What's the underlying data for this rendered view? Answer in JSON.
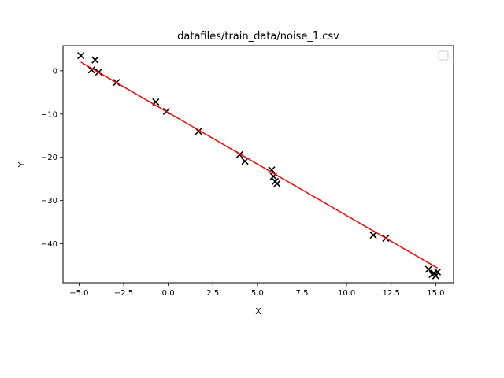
{
  "chart_data": {
    "type": "scatter",
    "title": "datafiles/train_data/noise_1.csv",
    "xlabel": "X",
    "ylabel": "Y",
    "xlim": [
      -5.9,
      16.0
    ],
    "ylim": [
      -49.0,
      5.8
    ],
    "xticks": [
      -5.0,
      -2.5,
      0.0,
      2.5,
      5.0,
      7.5,
      10.0,
      12.5,
      15.0
    ],
    "xtick_labels": [
      "−5.0",
      "−2.5",
      "0.0",
      "2.5",
      "5.0",
      "7.5",
      "10.0",
      "12.5",
      "15.0"
    ],
    "yticks": [
      0,
      -10,
      -20,
      -30,
      -40
    ],
    "ytick_labels": [
      "0",
      "−10",
      "−20",
      "−30",
      "−40"
    ],
    "grid": false,
    "legend": {
      "placement": "upper-right",
      "entries": []
    },
    "series": [
      {
        "kind": "scatter",
        "marker": "x",
        "color": "#000000",
        "points": [
          [
            -4.9,
            3.5
          ],
          [
            -4.3,
            0.2
          ],
          [
            -4.1,
            2.5
          ],
          [
            -3.9,
            -0.3
          ],
          [
            -2.9,
            -2.7
          ],
          [
            -0.7,
            -7.2
          ],
          [
            -0.1,
            -9.4
          ],
          [
            1.7,
            -14.0
          ],
          [
            4.0,
            -19.4
          ],
          [
            4.3,
            -20.9
          ],
          [
            5.8,
            -22.9
          ],
          [
            5.9,
            -24.4
          ],
          [
            6.0,
            -25.6
          ],
          [
            6.1,
            -26.1
          ],
          [
            11.5,
            -38.0
          ],
          [
            12.2,
            -38.7
          ],
          [
            14.6,
            -45.9
          ],
          [
            14.8,
            -47.1
          ],
          [
            14.9,
            -46.8
          ],
          [
            15.0,
            -47.4
          ],
          [
            15.1,
            -46.5
          ]
        ]
      },
      {
        "kind": "line",
        "color": "#ff0000",
        "points": [
          [
            -4.9,
            2.0
          ],
          [
            15.1,
            -45.6
          ]
        ]
      }
    ]
  }
}
